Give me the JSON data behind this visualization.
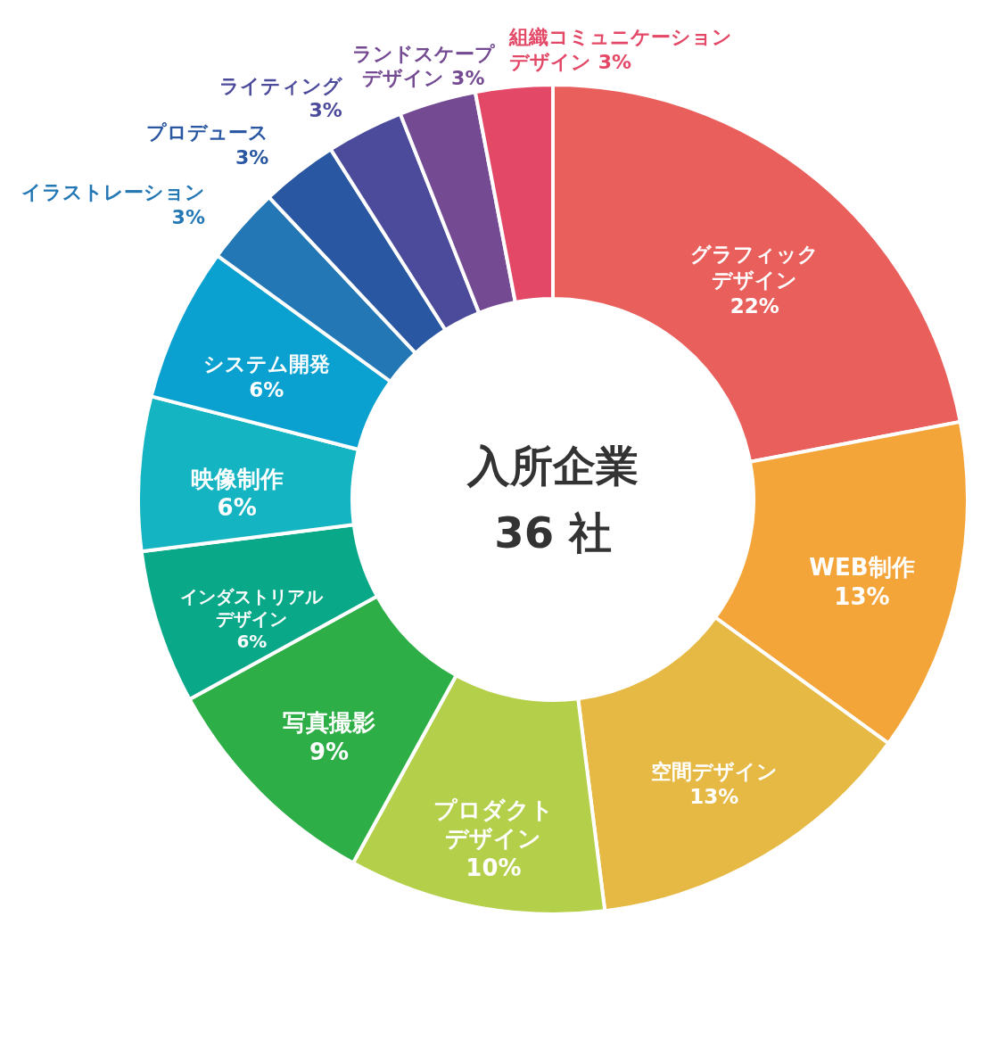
{
  "chart_data": {
    "type": "donut",
    "title": "入所企業",
    "subtitle": "36 社",
    "categories": [
      "グラフィックデザイン",
      "WEB制作",
      "空間デザイン",
      "プロダクトデザイン",
      "写真撮影",
      "インダストリアルデザイン",
      "映像制作",
      "システム開発",
      "イラストレーション",
      "プロデュース",
      "ライティング",
      "ランドスケープデザイン",
      "組織コミュニケーションデザイン"
    ],
    "values": [
      22,
      13,
      13,
      10,
      9,
      6,
      6,
      6,
      3,
      3,
      3,
      3,
      3
    ],
    "value_labels": [
      "22%",
      "13%",
      "13%",
      "10%",
      "9%",
      "6%",
      "6%",
      "6%",
      "3%",
      "3%",
      "3%",
      "3%",
      "3%"
    ],
    "colors": [
      "#e95f5c",
      "#f4a53a",
      "#e6b944",
      "#b4cf4a",
      "#2eae46",
      "#09a889",
      "#14b4c2",
      "#0aa0d0",
      "#2377b5",
      "#2957a1",
      "#4c4a9b",
      "#744a93",
      "#e34866"
    ],
    "legend": false
  }
}
